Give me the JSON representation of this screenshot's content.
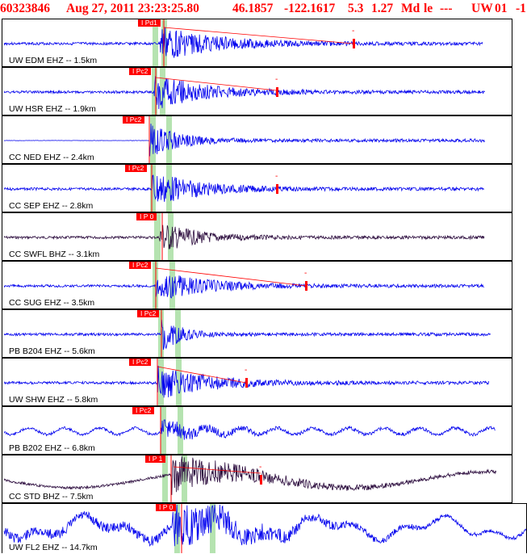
{
  "header": {
    "event_id": "60323846",
    "datetime": "Aug 27, 2011 23:23:25.80",
    "latitude": "46.1857",
    "longitude": "-122.1617",
    "depth": "5.3",
    "magnitude": "1.27",
    "magnitude_type": "Md",
    "event_type": "le",
    "dashes": "---",
    "network": "UW",
    "version": "01",
    "trailing": "-1"
  },
  "colors": {
    "header_text": "#ff0000",
    "pick_box": "#ff0000",
    "window_band": "#b5e3b0",
    "trace_blue": "#0000ee",
    "trace_dark": "#2a0a3c"
  },
  "traces": [
    {
      "label": "UW EDM EHZ -- 1.5km",
      "pick": "I Pd1",
      "color": "blue",
      "icon": "none"
    },
    {
      "label": "UW HSR EHZ -- 1.9km",
      "pick": "I Pc2",
      "color": "blue",
      "icon": "none"
    },
    {
      "label": "CC NED EHZ -- 2.4km",
      "pick": "I Pc2",
      "color": "blue",
      "icon": "none"
    },
    {
      "label": "CC SEP EHZ -- 2.8km",
      "pick": "I Pc2",
      "color": "blue",
      "icon": "none"
    },
    {
      "label": "CC SWFL BHZ -- 3.1km",
      "pick": "I P 0",
      "color": "dark",
      "icon": "none"
    },
    {
      "label": "CC SUG EHZ -- 3.5km",
      "pick": "I Pc2",
      "color": "blue",
      "icon": "none"
    },
    {
      "label": "PB B204 EHZ -- 5.6km",
      "pick": "I Pc2",
      "color": "blue",
      "icon": "none"
    },
    {
      "label": "UW SHW EHZ -- 5.8km",
      "pick": "I Pc2",
      "color": "blue",
      "icon": "none"
    },
    {
      "label": "PB B202 EHZ -- 6.8km",
      "pick": "I Pc2",
      "color": "blue",
      "icon": "none"
    },
    {
      "label": "CC STD BHZ -- 7.5km",
      "pick": "I P 1",
      "color": "dark",
      "icon": "none"
    },
    {
      "label": "UW FL2 EHZ -- 14.7km",
      "pick": "I P 0",
      "color": "blue",
      "icon": "none"
    }
  ]
}
